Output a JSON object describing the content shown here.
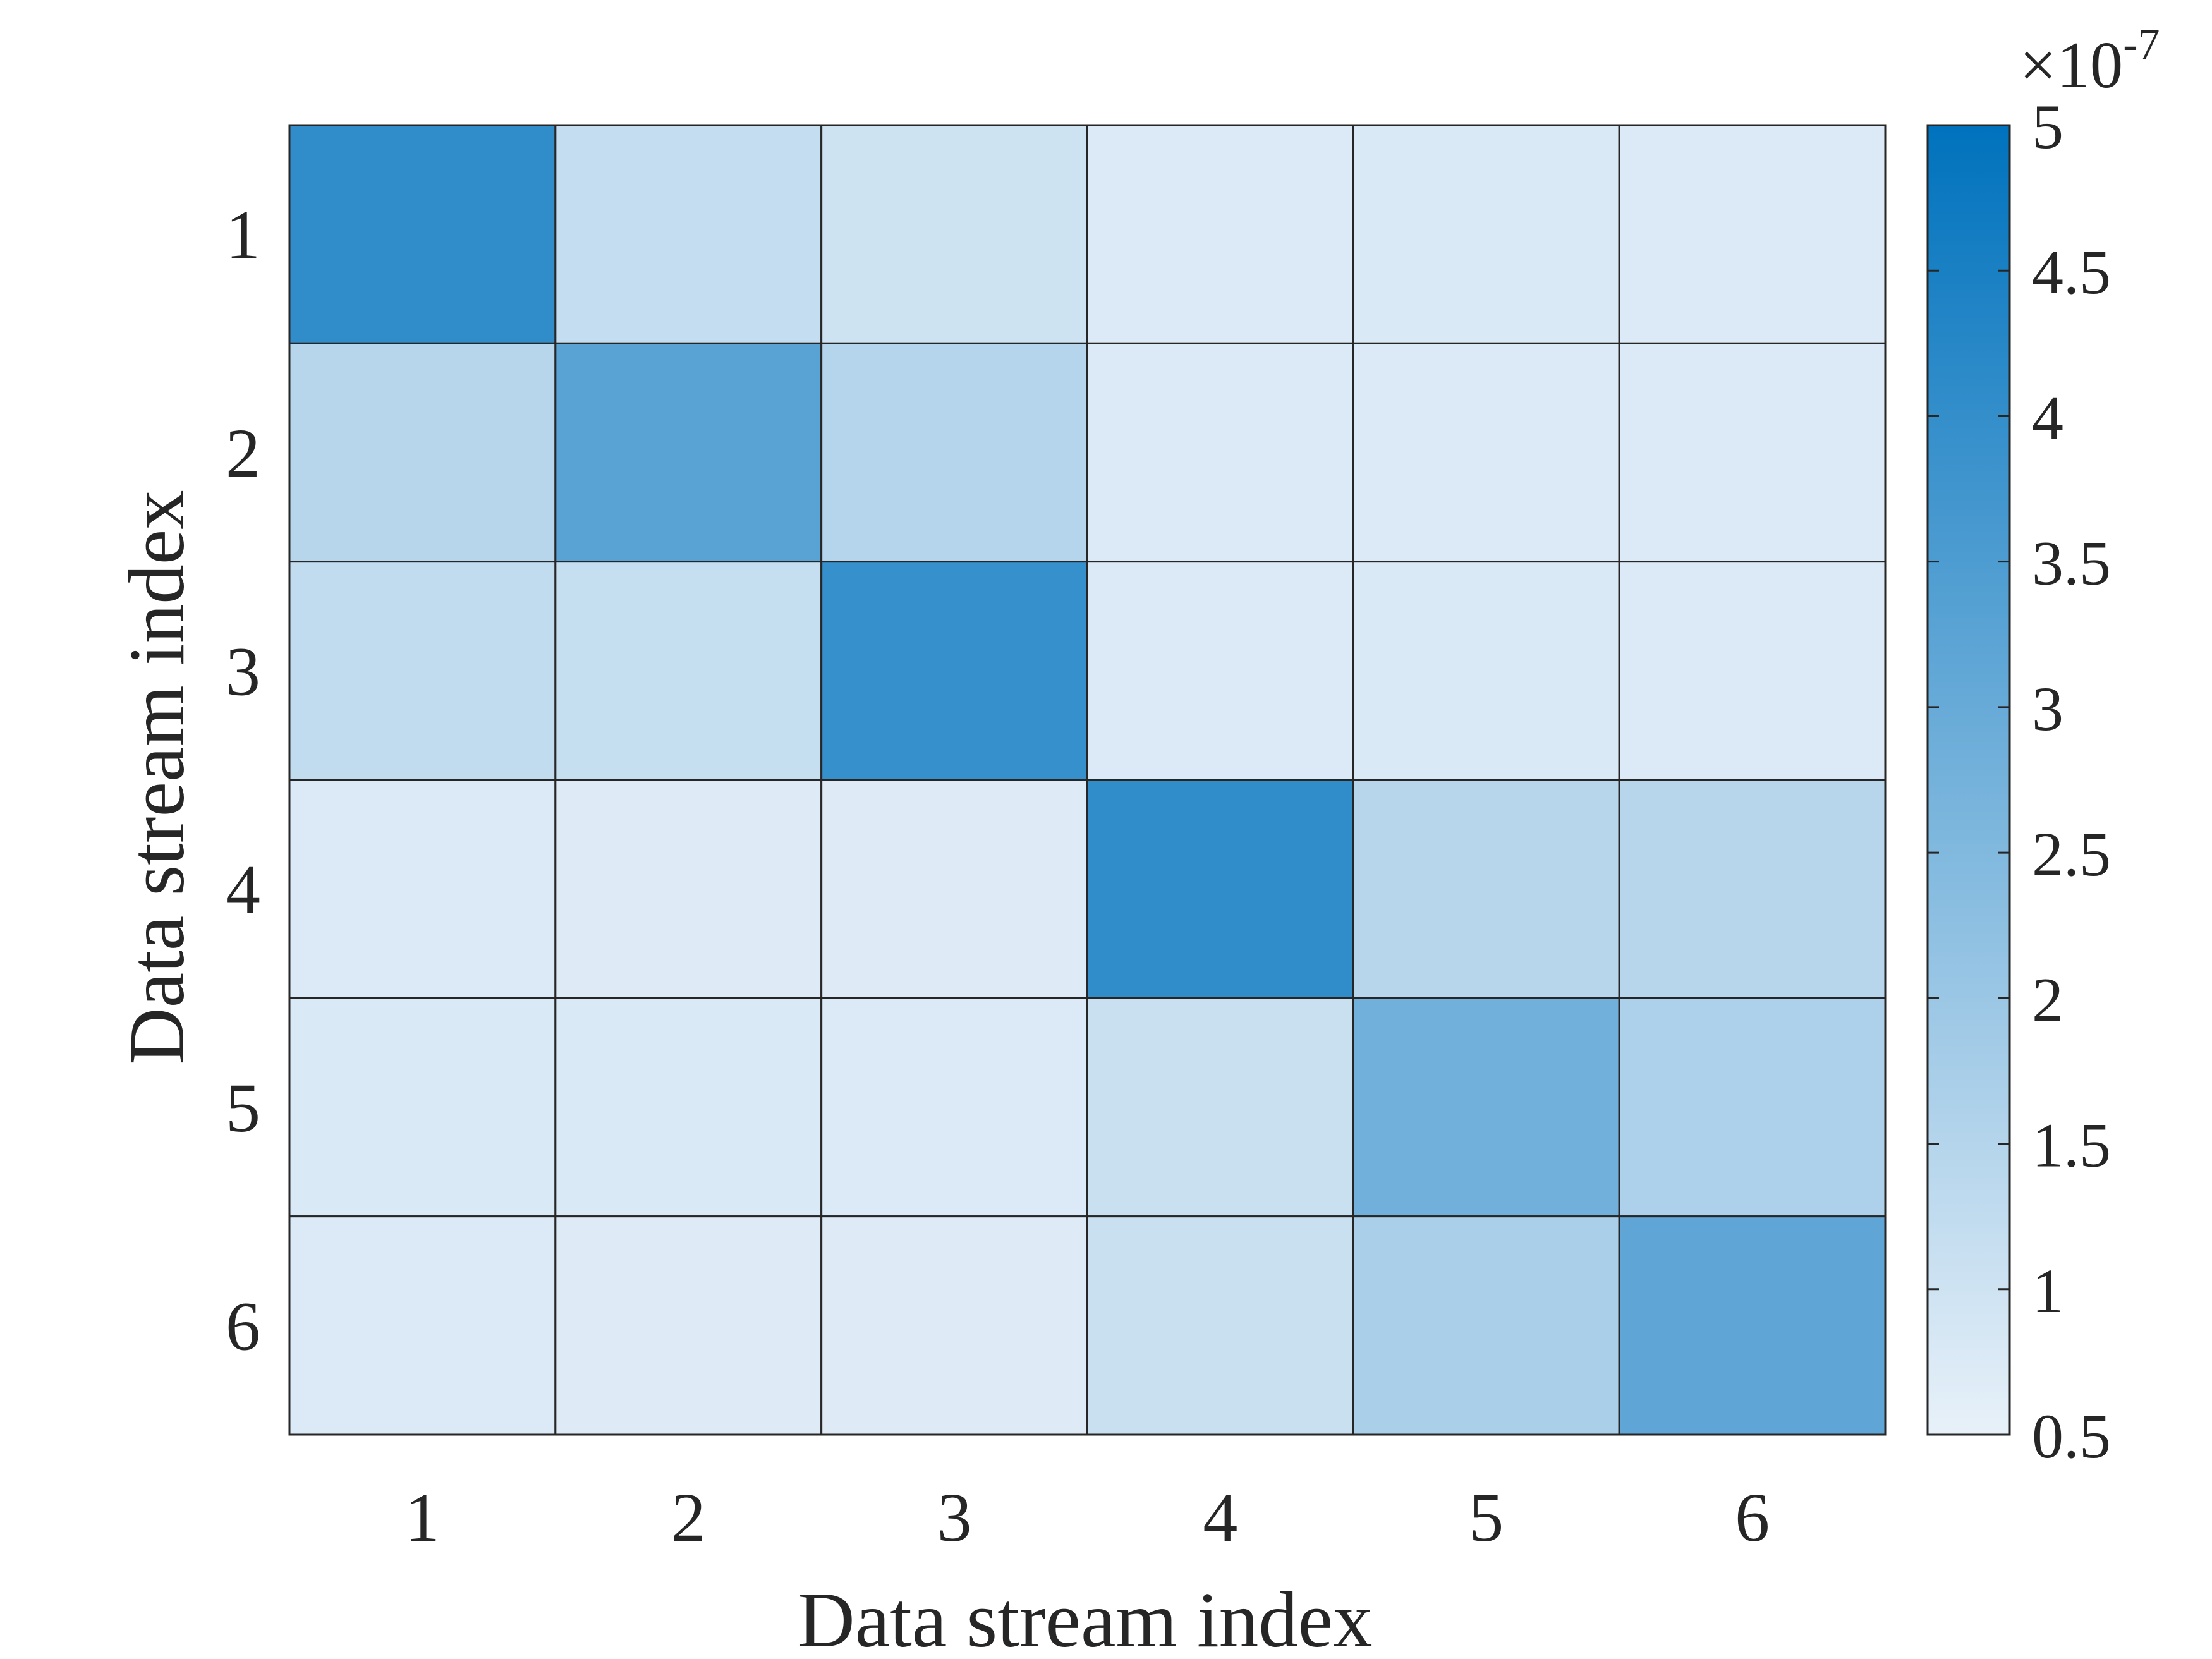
{
  "chart_data": {
    "type": "heatmap",
    "title": "",
    "xlabel": "Data stream index",
    "ylabel": "Data stream index",
    "x_categories": [
      "1",
      "2",
      "3",
      "4",
      "5",
      "6"
    ],
    "y_categories": [
      "1",
      "2",
      "3",
      "4",
      "5",
      "6"
    ],
    "values": [
      [
        4.05,
        1.2,
        1.0,
        0.75,
        0.8,
        0.75
      ],
      [
        1.45,
        3.3,
        1.5,
        0.75,
        0.75,
        0.75
      ],
      [
        1.25,
        1.15,
        3.95,
        0.75,
        0.8,
        0.75
      ],
      [
        0.75,
        0.7,
        0.7,
        4.05,
        1.45,
        1.45
      ],
      [
        0.8,
        0.8,
        0.75,
        1.1,
        2.8,
        1.65
      ],
      [
        0.75,
        0.7,
        0.7,
        1.1,
        1.7,
        3.15
      ]
    ],
    "colorbar": {
      "min": 0.5,
      "max": 5,
      "ticks": [
        "0.5",
        "1",
        "1.5",
        "2",
        "2.5",
        "3",
        "3.5",
        "4",
        "4.5",
        "5"
      ],
      "tick_values": [
        0.5,
        1,
        1.5,
        2,
        2.5,
        3,
        3.5,
        4,
        4.5,
        5
      ],
      "exponent_base": "×10",
      "exponent_power": "-7",
      "color_low": "#e8f1f9",
      "color_high": "#0072bd"
    },
    "grid": true,
    "colors": {
      "cell_border": "#262626",
      "axis": "#262626",
      "text": "#262626"
    }
  }
}
